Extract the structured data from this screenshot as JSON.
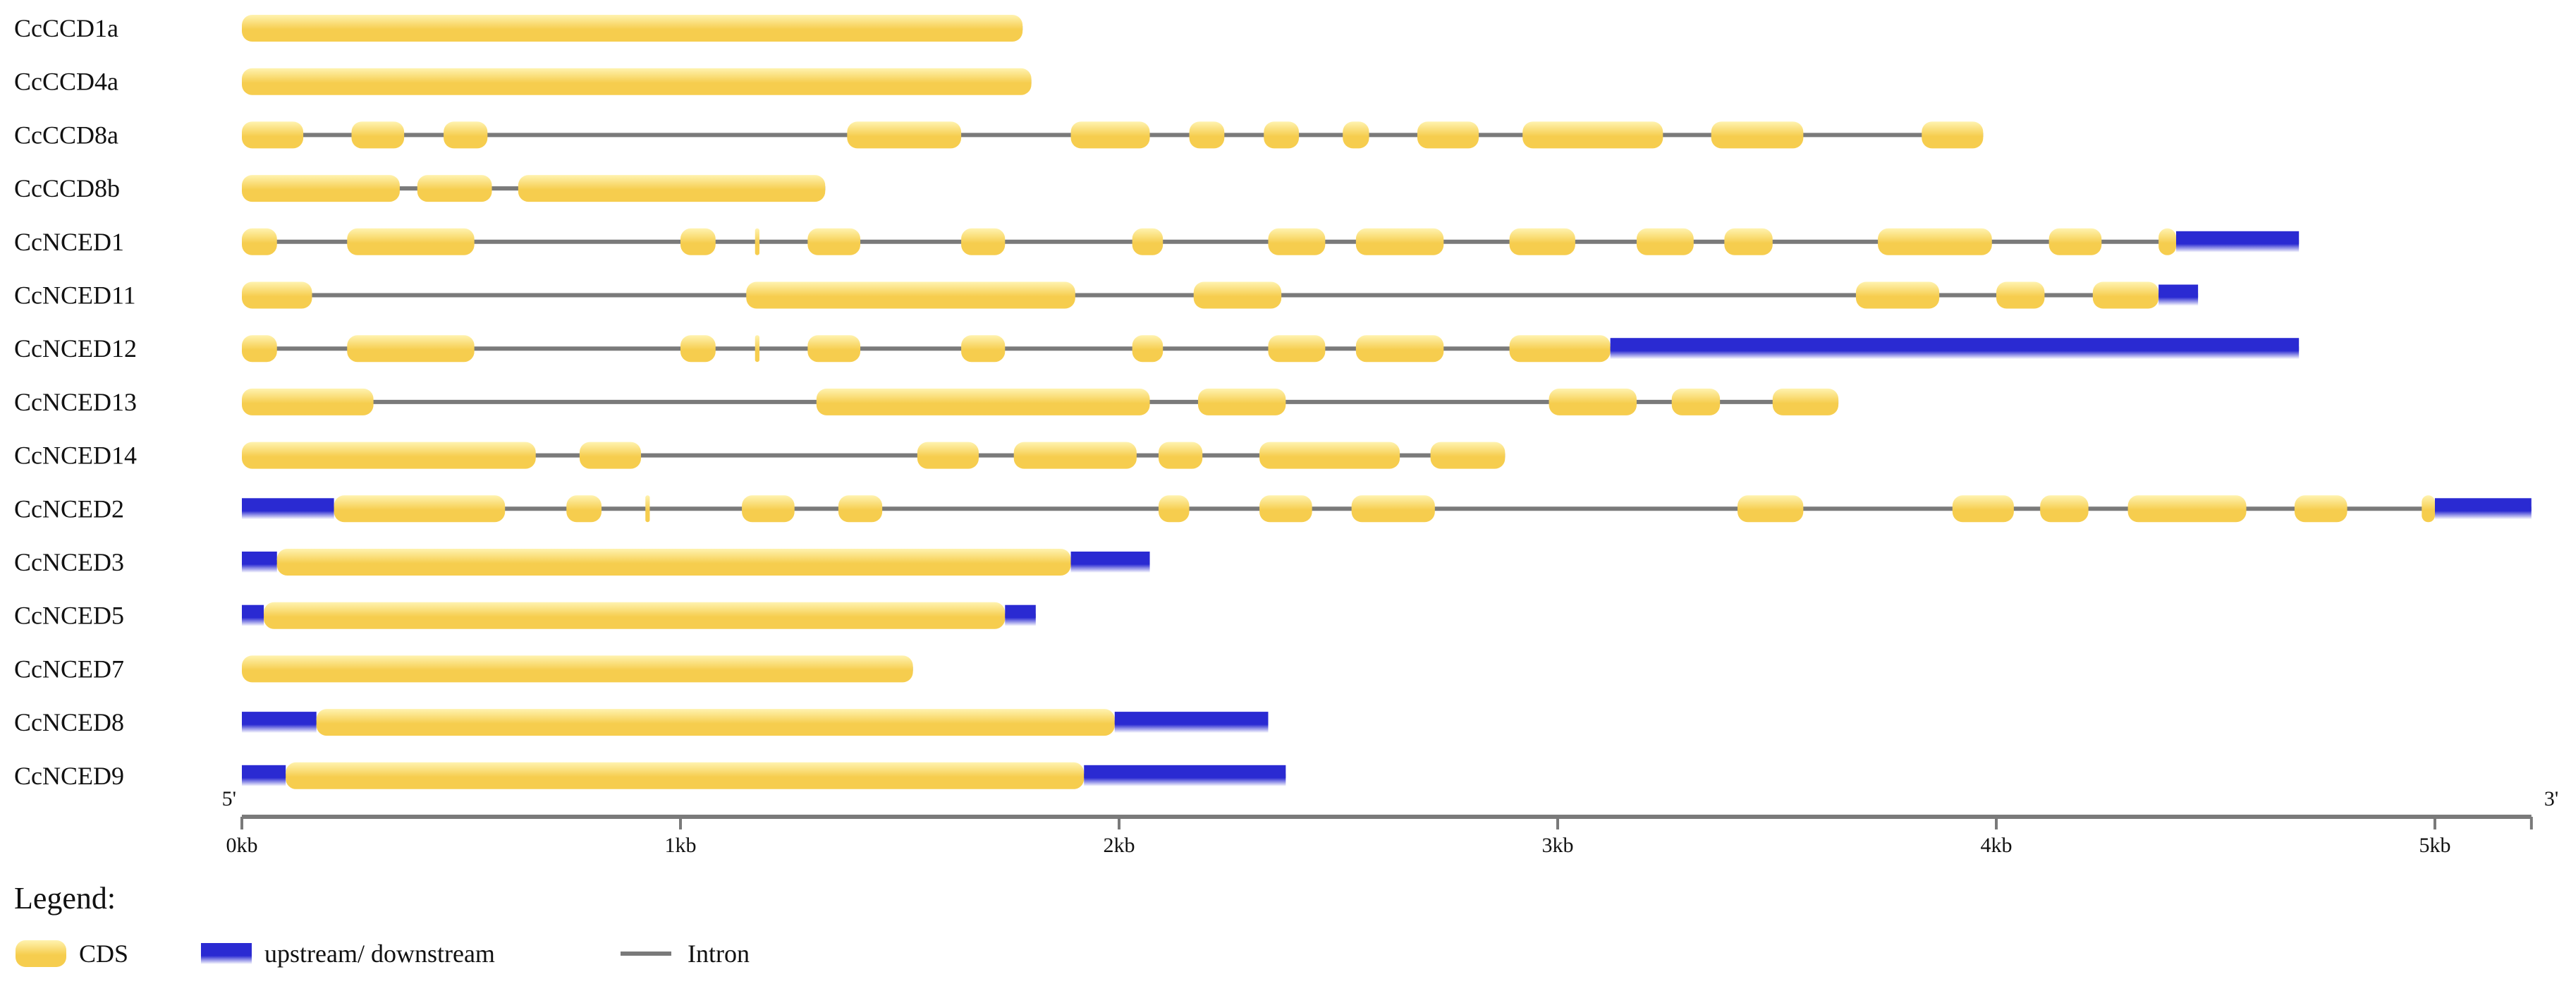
{
  "chart_data": {
    "type": "gene-structure",
    "x_unit": "kb",
    "axis": {
      "min": 0,
      "max": 5.22,
      "ticks": [
        {
          "value": 0,
          "label": "0kb"
        },
        {
          "value": 1,
          "label": "1kb"
        },
        {
          "value": 2,
          "label": "2kb"
        },
        {
          "value": 3,
          "label": "3kb"
        },
        {
          "value": 4,
          "label": "4kb"
        },
        {
          "value": 5,
          "label": "5kb"
        }
      ],
      "start_label": "5'",
      "end_label": "3'"
    },
    "legend": {
      "title": "Legend:",
      "items": [
        {
          "kind": "cds",
          "label": "CDS"
        },
        {
          "kind": "utr",
          "label": "upstream/ downstream"
        },
        {
          "kind": "intron",
          "label": "Intron"
        }
      ]
    },
    "colors": {
      "cds": "#f6cd4e",
      "cds_light": "#fff3b0",
      "utr": "#2a2ad2",
      "utr_light": "#ffffff",
      "intron": "#7a7a7a",
      "axis": "#7a7a7a"
    },
    "genes": [
      {
        "name": "CcCCD1a",
        "length": 1.78,
        "features": [
          {
            "t": "cds",
            "s": 0,
            "e": 1.78
          }
        ]
      },
      {
        "name": "CcCCD4a",
        "length": 1.8,
        "features": [
          {
            "t": "cds",
            "s": 0,
            "e": 1.8
          }
        ]
      },
      {
        "name": "CcCCD8a",
        "length": 3.97,
        "features": [
          {
            "t": "cds",
            "s": 0,
            "e": 0.14
          },
          {
            "t": "cds",
            "s": 0.25,
            "e": 0.37
          },
          {
            "t": "cds",
            "s": 0.46,
            "e": 0.56
          },
          {
            "t": "cds",
            "s": 1.38,
            "e": 1.64
          },
          {
            "t": "cds",
            "s": 1.89,
            "e": 2.07
          },
          {
            "t": "cds",
            "s": 2.16,
            "e": 2.24
          },
          {
            "t": "cds",
            "s": 2.33,
            "e": 2.41
          },
          {
            "t": "cds",
            "s": 2.51,
            "e": 2.57
          },
          {
            "t": "cds",
            "s": 2.68,
            "e": 2.82
          },
          {
            "t": "cds",
            "s": 2.92,
            "e": 3.24
          },
          {
            "t": "cds",
            "s": 3.35,
            "e": 3.56
          },
          {
            "t": "cds",
            "s": 3.83,
            "e": 3.97
          }
        ]
      },
      {
        "name": "CcCCD8b",
        "length": 1.33,
        "features": [
          {
            "t": "cds",
            "s": 0,
            "e": 0.36
          },
          {
            "t": "cds",
            "s": 0.4,
            "e": 0.57
          },
          {
            "t": "cds",
            "s": 0.63,
            "e": 1.33
          }
        ]
      },
      {
        "name": "CcNCED1",
        "length": 4.69,
        "features": [
          {
            "t": "cds",
            "s": 0,
            "e": 0.08
          },
          {
            "t": "cds",
            "s": 0.24,
            "e": 0.53
          },
          {
            "t": "cds",
            "s": 1.0,
            "e": 1.08
          },
          {
            "t": "cds",
            "s": 1.17,
            "e": 1.18
          },
          {
            "t": "cds",
            "s": 1.29,
            "e": 1.41
          },
          {
            "t": "cds",
            "s": 1.64,
            "e": 1.74
          },
          {
            "t": "cds",
            "s": 2.03,
            "e": 2.1
          },
          {
            "t": "cds",
            "s": 2.34,
            "e": 2.47
          },
          {
            "t": "cds",
            "s": 2.54,
            "e": 2.74
          },
          {
            "t": "cds",
            "s": 2.89,
            "e": 3.04
          },
          {
            "t": "cds",
            "s": 3.18,
            "e": 3.31
          },
          {
            "t": "cds",
            "s": 3.38,
            "e": 3.49
          },
          {
            "t": "cds",
            "s": 3.73,
            "e": 3.99
          },
          {
            "t": "cds",
            "s": 4.12,
            "e": 4.24
          },
          {
            "t": "cds",
            "s": 4.37,
            "e": 4.41
          },
          {
            "t": "utr",
            "s": 4.41,
            "e": 4.69
          }
        ]
      },
      {
        "name": "CcNCED11",
        "length": 4.46,
        "features": [
          {
            "t": "cds",
            "s": 0,
            "e": 0.16
          },
          {
            "t": "cds",
            "s": 1.15,
            "e": 1.9
          },
          {
            "t": "cds",
            "s": 2.17,
            "e": 2.37
          },
          {
            "t": "cds",
            "s": 3.68,
            "e": 3.87
          },
          {
            "t": "cds",
            "s": 4.0,
            "e": 4.11
          },
          {
            "t": "cds",
            "s": 4.22,
            "e": 4.37
          },
          {
            "t": "utr",
            "s": 4.37,
            "e": 4.46
          }
        ]
      },
      {
        "name": "CcNCED12",
        "length": 4.69,
        "features": [
          {
            "t": "cds",
            "s": 0,
            "e": 0.08
          },
          {
            "t": "cds",
            "s": 0.24,
            "e": 0.53
          },
          {
            "t": "cds",
            "s": 1.0,
            "e": 1.08
          },
          {
            "t": "cds",
            "s": 1.17,
            "e": 1.18
          },
          {
            "t": "cds",
            "s": 1.29,
            "e": 1.41
          },
          {
            "t": "cds",
            "s": 1.64,
            "e": 1.74
          },
          {
            "t": "cds",
            "s": 2.03,
            "e": 2.1
          },
          {
            "t": "cds",
            "s": 2.34,
            "e": 2.47
          },
          {
            "t": "cds",
            "s": 2.54,
            "e": 2.74
          },
          {
            "t": "cds",
            "s": 2.89,
            "e": 3.12
          },
          {
            "t": "utr",
            "s": 3.12,
            "e": 4.69
          }
        ]
      },
      {
        "name": "CcNCED13",
        "length": 3.64,
        "features": [
          {
            "t": "cds",
            "s": 0,
            "e": 0.3
          },
          {
            "t": "cds",
            "s": 1.31,
            "e": 2.07
          },
          {
            "t": "cds",
            "s": 2.18,
            "e": 2.38
          },
          {
            "t": "cds",
            "s": 2.98,
            "e": 3.18
          },
          {
            "t": "cds",
            "s": 3.26,
            "e": 3.37
          },
          {
            "t": "cds",
            "s": 3.49,
            "e": 3.64
          }
        ]
      },
      {
        "name": "CcNCED14",
        "length": 2.88,
        "features": [
          {
            "t": "cds",
            "s": 0,
            "e": 0.67
          },
          {
            "t": "cds",
            "s": 0.77,
            "e": 0.91
          },
          {
            "t": "cds",
            "s": 1.54,
            "e": 1.68
          },
          {
            "t": "cds",
            "s": 1.76,
            "e": 2.04
          },
          {
            "t": "cds",
            "s": 2.09,
            "e": 2.19
          },
          {
            "t": "cds",
            "s": 2.32,
            "e": 2.64
          },
          {
            "t": "cds",
            "s": 2.71,
            "e": 2.88
          }
        ]
      },
      {
        "name": "CcNCED2",
        "length": 5.22,
        "features": [
          {
            "t": "utr",
            "s": 0,
            "e": 0.21
          },
          {
            "t": "cds",
            "s": 0.21,
            "e": 0.6
          },
          {
            "t": "cds",
            "s": 0.74,
            "e": 0.82
          },
          {
            "t": "cds",
            "s": 0.92,
            "e": 0.93
          },
          {
            "t": "cds",
            "s": 1.14,
            "e": 1.26
          },
          {
            "t": "cds",
            "s": 1.36,
            "e": 1.46
          },
          {
            "t": "cds",
            "s": 2.09,
            "e": 2.16
          },
          {
            "t": "cds",
            "s": 2.32,
            "e": 2.44
          },
          {
            "t": "cds",
            "s": 2.53,
            "e": 2.72
          },
          {
            "t": "cds",
            "s": 3.41,
            "e": 3.56
          },
          {
            "t": "cds",
            "s": 3.9,
            "e": 4.04
          },
          {
            "t": "cds",
            "s": 4.1,
            "e": 4.21
          },
          {
            "t": "cds",
            "s": 4.3,
            "e": 4.57
          },
          {
            "t": "cds",
            "s": 4.68,
            "e": 4.8
          },
          {
            "t": "cds",
            "s": 4.97,
            "e": 5.0
          },
          {
            "t": "utr",
            "s": 5.0,
            "e": 5.22
          }
        ]
      },
      {
        "name": "CcNCED3",
        "length": 2.07,
        "features": [
          {
            "t": "utr",
            "s": 0,
            "e": 0.08
          },
          {
            "t": "cds",
            "s": 0.08,
            "e": 1.89
          },
          {
            "t": "utr",
            "s": 1.89,
            "e": 2.07
          }
        ]
      },
      {
        "name": "CcNCED5",
        "length": 1.81,
        "features": [
          {
            "t": "utr",
            "s": 0,
            "e": 0.05
          },
          {
            "t": "cds",
            "s": 0.05,
            "e": 1.74
          },
          {
            "t": "utr",
            "s": 1.74,
            "e": 1.81
          }
        ]
      },
      {
        "name": "CcNCED7",
        "length": 1.53,
        "features": [
          {
            "t": "cds",
            "s": 0,
            "e": 1.53
          }
        ]
      },
      {
        "name": "CcNCED8",
        "length": 2.34,
        "features": [
          {
            "t": "utr",
            "s": 0,
            "e": 0.17
          },
          {
            "t": "cds",
            "s": 0.17,
            "e": 1.99
          },
          {
            "t": "utr",
            "s": 1.99,
            "e": 2.34
          }
        ]
      },
      {
        "name": "CcNCED9",
        "length": 2.38,
        "features": [
          {
            "t": "utr",
            "s": 0,
            "e": 0.1
          },
          {
            "t": "cds",
            "s": 0.1,
            "e": 1.92
          },
          {
            "t": "utr",
            "s": 1.92,
            "e": 2.38
          }
        ]
      }
    ]
  }
}
